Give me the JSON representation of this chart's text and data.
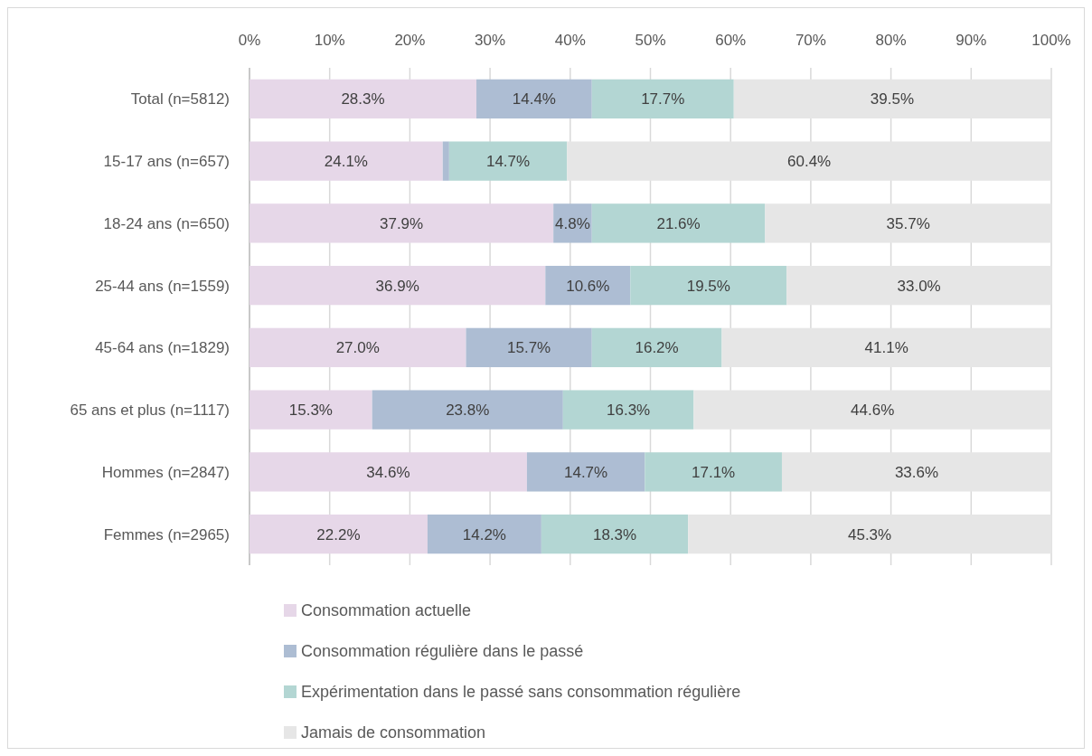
{
  "chart_data": {
    "type": "bar",
    "orientation": "horizontal",
    "stacked": true,
    "categories": [
      "Total (n=5812)",
      "15-17 ans (n=657)",
      "18-24 ans (n=650)",
      "25-44 ans (n=1559)",
      "45-64 ans (n=1829)",
      "65 ans et plus (n=1117)",
      "Hommes (n=2847)",
      "Femmes (n=2965)"
    ],
    "series": [
      {
        "name": "Consommation actuelle",
        "color": "#e6d7e8",
        "values": [
          28.3,
          24.1,
          37.9,
          36.9,
          27.0,
          15.3,
          34.6,
          22.2
        ],
        "value_labels": [
          "28.3%",
          "24.1%",
          "37.9%",
          "36.9%",
          "27.0%",
          "15.3%",
          "34.6%",
          "22.2%"
        ]
      },
      {
        "name": "Consommation régulière dans le passé",
        "color": "#adbdd3",
        "values": [
          14.4,
          0.8,
          4.8,
          10.6,
          15.7,
          23.8,
          14.7,
          14.2
        ],
        "value_labels": [
          "14.4%",
          null,
          "4.8%",
          "10.6%",
          "15.7%",
          "23.8%",
          "14.7%",
          "14.2%"
        ]
      },
      {
        "name": "Expérimentation dans le passé sans consommation régulière",
        "color": "#b3d6d3",
        "values": [
          17.7,
          14.7,
          21.6,
          19.5,
          16.2,
          16.3,
          17.1,
          18.3
        ],
        "value_labels": [
          "17.7%",
          "14.7%",
          "21.6%",
          "19.5%",
          "16.2%",
          "16.3%",
          "17.1%",
          "18.3%"
        ]
      },
      {
        "name": "Jamais de consommation",
        "color": "#e6e6e6",
        "values": [
          39.5,
          60.4,
          35.7,
          33.0,
          41.1,
          44.6,
          33.6,
          45.3
        ],
        "value_labels": [
          "39.5%",
          "60.4%",
          "35.7%",
          "33.0%",
          "41.1%",
          "44.6%",
          "33.6%",
          "45.3%"
        ]
      }
    ],
    "xlim": [
      0,
      100
    ],
    "xticks": [
      {
        "value": 0,
        "label": "0%"
      },
      {
        "value": 10,
        "label": "10%"
      },
      {
        "value": 20,
        "label": "20%"
      },
      {
        "value": 30,
        "label": "30%"
      },
      {
        "value": 40,
        "label": "40%"
      },
      {
        "value": 50,
        "label": "50%"
      },
      {
        "value": 60,
        "label": "60%"
      },
      {
        "value": 70,
        "label": "70%"
      },
      {
        "value": 80,
        "label": "80%"
      },
      {
        "value": 90,
        "label": "90%"
      },
      {
        "value": 100,
        "label": "100%"
      }
    ],
    "grid": "x",
    "legend": "bottom"
  }
}
